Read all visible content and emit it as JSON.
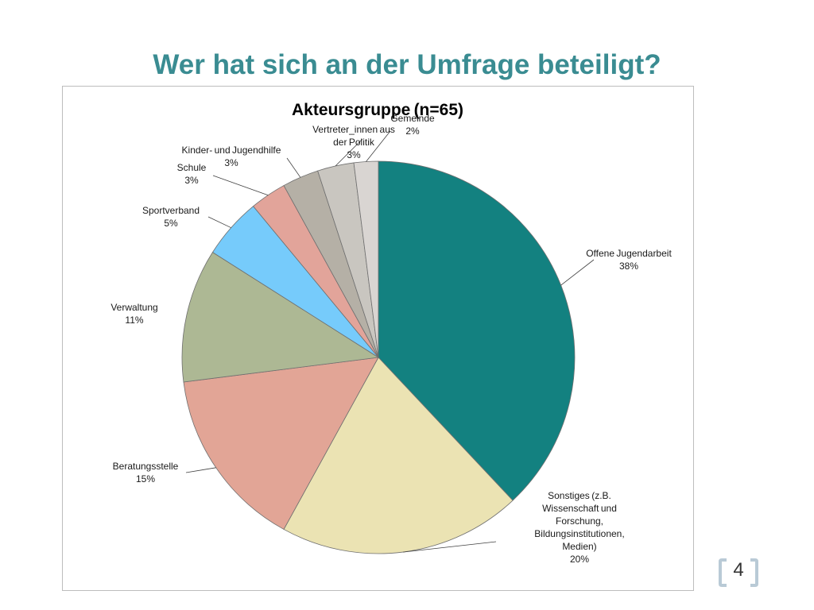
{
  "slide": {
    "title": "Wer hat sich an der Umfrage beteiligt?",
    "page_number": "4"
  },
  "chart_data": {
    "type": "pie",
    "title": "Akteursgruppe (n=65)",
    "start_angle_deg": 0,
    "direction": "clockwise",
    "slices": [
      {
        "label": [
          "Offene Jugendarbeit"
        ],
        "value": 38,
        "value_label": "38%",
        "color": "#138180"
      },
      {
        "label": [
          "Sonstiges (z.B.",
          "Wissenschaft und",
          "Forschung,",
          "Bildungsinstitutionen,",
          "Medien)"
        ],
        "value": 20,
        "value_label": "20%",
        "color": "#ebe3b3"
      },
      {
        "label": [
          "Beratungsstelle"
        ],
        "value": 15,
        "value_label": "15%",
        "color": "#e2a596"
      },
      {
        "label": [
          "Verwaltung"
        ],
        "value": 11,
        "value_label": "11%",
        "color": "#adb894"
      },
      {
        "label": [
          "Sportverband"
        ],
        "value": 5,
        "value_label": "5%",
        "color": "#76cbfb"
      },
      {
        "label": [
          "Schule"
        ],
        "value": 3,
        "value_label": "3%",
        "color": "#e2a49a"
      },
      {
        "label": [
          "Kinder- und Jugendhilfe"
        ],
        "value": 3,
        "value_label": "3%",
        "color": "#b5b0a6"
      },
      {
        "label": [
          "Vertreter_innen aus",
          "der Politik"
        ],
        "value": 3,
        "value_label": "3%",
        "color": "#c9c6c0"
      },
      {
        "label": [
          "Gemeinde"
        ],
        "value": 2,
        "value_label": "2%",
        "color": "#d9d5d2"
      }
    ],
    "legend": "none"
  }
}
